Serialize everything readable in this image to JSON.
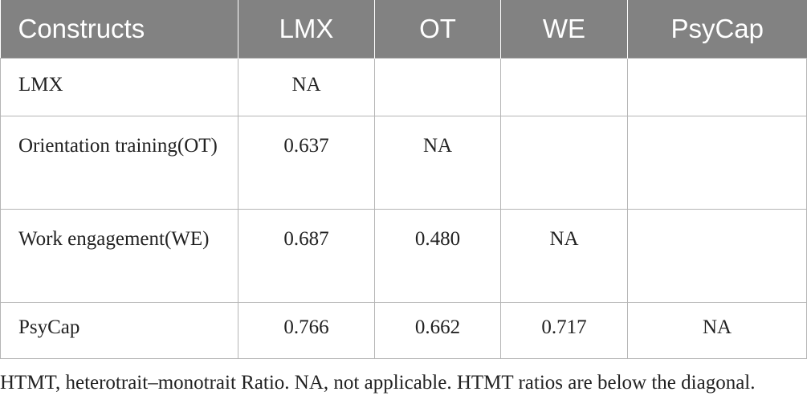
{
  "table": {
    "headers": [
      "Constructs",
      "LMX",
      "OT",
      "WE",
      "PsyCap"
    ],
    "rows": [
      {
        "label": "LMX",
        "values": [
          "NA",
          "",
          "",
          ""
        ]
      },
      {
        "label": "Orientation training(OT)",
        "values": [
          "0.637",
          "NA",
          "",
          ""
        ]
      },
      {
        "label": "Work engagement(WE)",
        "values": [
          "0.687",
          "0.480",
          "NA",
          ""
        ]
      },
      {
        "label": "PsyCap",
        "values": [
          "0.766",
          "0.662",
          "0.717",
          "NA"
        ]
      }
    ]
  },
  "footnote": "HTMT, heterotrait–monotrait Ratio. NA, not applicable. HTMT ratios are below the diagonal."
}
